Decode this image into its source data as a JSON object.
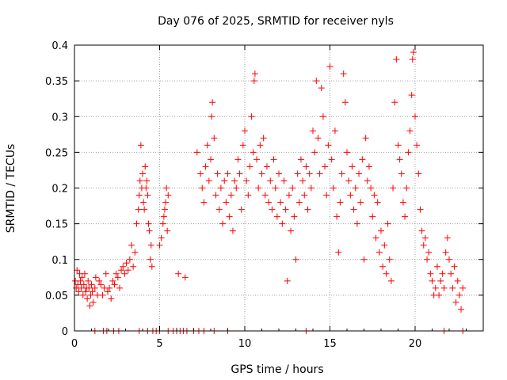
{
  "chart_data": {
    "type": "scatter",
    "title": "Day 076 of 2025, SRMTID for receiver nyls",
    "xlabel": "GPS time / hours",
    "ylabel": "SRMTID / TECUs",
    "xlim": [
      0,
      24
    ],
    "ylim": [
      0,
      0.4
    ],
    "x_ticks": [
      0,
      5,
      10,
      15,
      20
    ],
    "y_ticks": [
      0,
      0.05,
      0.1,
      0.15,
      0.2,
      0.25,
      0.3,
      0.35,
      0.4
    ],
    "y_tick_labels": [
      "0",
      "0.05",
      "0.1",
      "0.15",
      "0.2",
      "0.25",
      "0.3",
      "0.35",
      "0.4"
    ],
    "grid": true,
    "marker": "plus",
    "color": "#ff0000",
    "series": [
      {
        "name": "SRMTID",
        "points": [
          [
            0.05,
            0.07
          ],
          [
            0.1,
            0.06
          ],
          [
            0.15,
            0.085
          ],
          [
            0.2,
            0.065
          ],
          [
            0.25,
            0.055
          ],
          [
            0.3,
            0.08
          ],
          [
            0.35,
            0.07
          ],
          [
            0.4,
            0.06
          ],
          [
            0.45,
            0.075
          ],
          [
            0.5,
            0.05
          ],
          [
            0.55,
            0.065
          ],
          [
            0.6,
            0.08
          ],
          [
            0.65,
            0.055
          ],
          [
            0.7,
            0.06
          ],
          [
            0.75,
            0.045
          ],
          [
            0.8,
            0.07
          ],
          [
            0.85,
            0.06
          ],
          [
            0.9,
            0.035
          ],
          [
            0.95,
            0.05
          ],
          [
            1.0,
            0.065
          ],
          [
            1.05,
            0.055
          ],
          [
            1.1,
            0.04
          ],
          [
            1.2,
            0.06
          ],
          [
            1.25,
            0.075
          ],
          [
            1.35,
            0.05
          ],
          [
            1.45,
            0.07
          ],
          [
            1.55,
            0.065
          ],
          [
            1.65,
            0.05
          ],
          [
            1.75,
            0.06
          ],
          [
            1.85,
            0.08
          ],
          [
            1.95,
            0.055
          ],
          [
            2.05,
            0.06
          ],
          [
            2.15,
            0.045
          ],
          [
            2.25,
            0.07
          ],
          [
            2.35,
            0.065
          ],
          [
            2.45,
            0.08
          ],
          [
            2.55,
            0.075
          ],
          [
            2.65,
            0.06
          ],
          [
            2.75,
            0.085
          ],
          [
            2.85,
            0.09
          ],
          [
            2.95,
            0.08
          ],
          [
            3.05,
            0.095
          ],
          [
            3.15,
            0.085
          ],
          [
            3.25,
            0.1
          ],
          [
            3.35,
            0.12
          ],
          [
            3.45,
            0.09
          ],
          [
            3.55,
            0.11
          ],
          [
            3.65,
            0.15
          ],
          [
            3.75,
            0.17
          ],
          [
            3.8,
            0.19
          ],
          [
            3.85,
            0.21
          ],
          [
            3.9,
            0.26
          ],
          [
            3.95,
            0.2
          ],
          [
            4.0,
            0.22
          ],
          [
            4.05,
            0.18
          ],
          [
            4.1,
            0.17
          ],
          [
            4.15,
            0.23
          ],
          [
            4.2,
            0.2
          ],
          [
            4.25,
            0.21
          ],
          [
            4.3,
            0.19
          ],
          [
            4.35,
            0.15
          ],
          [
            4.4,
            0.14
          ],
          [
            4.45,
            0.1
          ],
          [
            4.5,
            0.12
          ],
          [
            4.55,
            0.09
          ],
          [
            5.0,
            0.12
          ],
          [
            5.1,
            0.13
          ],
          [
            5.2,
            0.15
          ],
          [
            5.25,
            0.16
          ],
          [
            5.3,
            0.17
          ],
          [
            5.35,
            0.18
          ],
          [
            5.4,
            0.2
          ],
          [
            5.45,
            0.14
          ],
          [
            5.5,
            0.19
          ],
          [
            6.1,
            0.08
          ],
          [
            6.5,
            0.075
          ],
          [
            7.2,
            0.25
          ],
          [
            7.4,
            0.22
          ],
          [
            7.5,
            0.2
          ],
          [
            7.6,
            0.18
          ],
          [
            7.7,
            0.23
          ],
          [
            7.8,
            0.26
          ],
          [
            7.9,
            0.21
          ],
          [
            8.0,
            0.24
          ],
          [
            8.05,
            0.3
          ],
          [
            8.1,
            0.32
          ],
          [
            8.2,
            0.27
          ],
          [
            8.3,
            0.19
          ],
          [
            8.4,
            0.22
          ],
          [
            8.5,
            0.17
          ],
          [
            8.6,
            0.2
          ],
          [
            8.7,
            0.15
          ],
          [
            8.8,
            0.21
          ],
          [
            8.9,
            0.18
          ],
          [
            9.0,
            0.22
          ],
          [
            9.1,
            0.16
          ],
          [
            9.2,
            0.19
          ],
          [
            9.3,
            0.14
          ],
          [
            9.4,
            0.21
          ],
          [
            9.5,
            0.2
          ],
          [
            9.6,
            0.24
          ],
          [
            9.7,
            0.22
          ],
          [
            9.8,
            0.17
          ],
          [
            9.9,
            0.26
          ],
          [
            10.0,
            0.28
          ],
          [
            10.1,
            0.21
          ],
          [
            10.2,
            0.19
          ],
          [
            10.3,
            0.23
          ],
          [
            10.4,
            0.3
          ],
          [
            10.5,
            0.25
          ],
          [
            10.55,
            0.35
          ],
          [
            10.6,
            0.36
          ],
          [
            10.7,
            0.24
          ],
          [
            10.8,
            0.2
          ],
          [
            10.9,
            0.26
          ],
          [
            11.0,
            0.22
          ],
          [
            11.1,
            0.27
          ],
          [
            11.2,
            0.19
          ],
          [
            11.3,
            0.23
          ],
          [
            11.4,
            0.18
          ],
          [
            11.5,
            0.21
          ],
          [
            11.6,
            0.17
          ],
          [
            11.7,
            0.24
          ],
          [
            11.8,
            0.2
          ],
          [
            11.9,
            0.16
          ],
          [
            12.0,
            0.22
          ],
          [
            12.1,
            0.18
          ],
          [
            12.2,
            0.15
          ],
          [
            12.3,
            0.21
          ],
          [
            12.4,
            0.17
          ],
          [
            12.5,
            0.07
          ],
          [
            12.6,
            0.19
          ],
          [
            12.7,
            0.14
          ],
          [
            12.8,
            0.2
          ],
          [
            12.9,
            0.16
          ],
          [
            13.0,
            0.1
          ],
          [
            13.1,
            0.22
          ],
          [
            13.2,
            0.18
          ],
          [
            13.3,
            0.24
          ],
          [
            13.4,
            0.21
          ],
          [
            13.5,
            0.19
          ],
          [
            13.6,
            0.23
          ],
          [
            13.7,
            0.17
          ],
          [
            13.8,
            0.22
          ],
          [
            13.9,
            0.2
          ],
          [
            14.0,
            0.28
          ],
          [
            14.1,
            0.25
          ],
          [
            14.2,
            0.35
          ],
          [
            14.3,
            0.27
          ],
          [
            14.4,
            0.22
          ],
          [
            14.5,
            0.34
          ],
          [
            14.6,
            0.3
          ],
          [
            14.7,
            0.23
          ],
          [
            14.8,
            0.19
          ],
          [
            14.9,
            0.26
          ],
          [
            15.0,
            0.37
          ],
          [
            15.1,
            0.24
          ],
          [
            15.2,
            0.2
          ],
          [
            15.3,
            0.28
          ],
          [
            15.4,
            0.16
          ],
          [
            15.5,
            0.11
          ],
          [
            15.6,
            0.18
          ],
          [
            15.7,
            0.22
          ],
          [
            15.8,
            0.36
          ],
          [
            15.9,
            0.32
          ],
          [
            16.0,
            0.25
          ],
          [
            16.1,
            0.21
          ],
          [
            16.2,
            0.19
          ],
          [
            16.3,
            0.23
          ],
          [
            16.4,
            0.17
          ],
          [
            16.5,
            0.2
          ],
          [
            16.6,
            0.15
          ],
          [
            16.7,
            0.22
          ],
          [
            16.8,
            0.18
          ],
          [
            16.9,
            0.24
          ],
          [
            17.0,
            0.1
          ],
          [
            17.1,
            0.27
          ],
          [
            17.2,
            0.21
          ],
          [
            17.3,
            0.23
          ],
          [
            17.4,
            0.2
          ],
          [
            17.5,
            0.16
          ],
          [
            17.6,
            0.19
          ],
          [
            17.7,
            0.13
          ],
          [
            17.8,
            0.18
          ],
          [
            17.9,
            0.11
          ],
          [
            18.0,
            0.14
          ],
          [
            18.1,
            0.09
          ],
          [
            18.2,
            0.12
          ],
          [
            18.3,
            0.08
          ],
          [
            18.4,
            0.15
          ],
          [
            18.5,
            0.1
          ],
          [
            18.6,
            0.07
          ],
          [
            18.7,
            0.2
          ],
          [
            18.8,
            0.32
          ],
          [
            18.9,
            0.38
          ],
          [
            19.0,
            0.26
          ],
          [
            19.1,
            0.24
          ],
          [
            19.2,
            0.22
          ],
          [
            19.3,
            0.18
          ],
          [
            19.4,
            0.16
          ],
          [
            19.5,
            0.2
          ],
          [
            19.6,
            0.25
          ],
          [
            19.7,
            0.28
          ],
          [
            19.8,
            0.33
          ],
          [
            19.85,
            0.38
          ],
          [
            19.9,
            0.39
          ],
          [
            20.0,
            0.3
          ],
          [
            20.1,
            0.26
          ],
          [
            20.2,
            0.22
          ],
          [
            20.3,
            0.17
          ],
          [
            20.4,
            0.14
          ],
          [
            20.5,
            0.12
          ],
          [
            20.6,
            0.13
          ],
          [
            20.7,
            0.1
          ],
          [
            20.8,
            0.11
          ],
          [
            20.9,
            0.08
          ],
          [
            21.0,
            0.07
          ],
          [
            21.1,
            0.05
          ],
          [
            21.2,
            0.06
          ],
          [
            21.3,
            0.09
          ],
          [
            21.4,
            0.05
          ],
          [
            21.5,
            0.07
          ],
          [
            21.6,
            0.08
          ],
          [
            21.7,
            0.06
          ],
          [
            21.8,
            0.11
          ],
          [
            21.9,
            0.13
          ],
          [
            22.0,
            0.1
          ],
          [
            22.1,
            0.08
          ],
          [
            22.2,
            0.06
          ],
          [
            22.3,
            0.09
          ],
          [
            22.4,
            0.04
          ],
          [
            22.5,
            0.07
          ],
          [
            22.6,
            0.05
          ],
          [
            22.7,
            0.03
          ],
          [
            22.8,
            0.06
          ],
          [
            1.2,
            0.0
          ],
          [
            1.7,
            0.0
          ],
          [
            1.9,
            0.0
          ],
          [
            2.3,
            0.0
          ],
          [
            2.6,
            0.0
          ],
          [
            3.8,
            0.0
          ],
          [
            4.3,
            0.0
          ],
          [
            4.6,
            0.0
          ],
          [
            4.8,
            0.0
          ],
          [
            5.0,
            0.0
          ],
          [
            5.5,
            0.0
          ],
          [
            5.8,
            0.0
          ],
          [
            6.0,
            0.0
          ],
          [
            6.2,
            0.0
          ],
          [
            6.4,
            0.0
          ],
          [
            6.6,
            0.0
          ],
          [
            7.0,
            0.0
          ],
          [
            7.3,
            0.0
          ],
          [
            7.6,
            0.0
          ],
          [
            8.2,
            0.0
          ],
          [
            9.0,
            0.0
          ],
          [
            13.6,
            0.0
          ],
          [
            21.7,
            0.0
          ],
          [
            22.8,
            0.0
          ]
        ]
      }
    ]
  }
}
